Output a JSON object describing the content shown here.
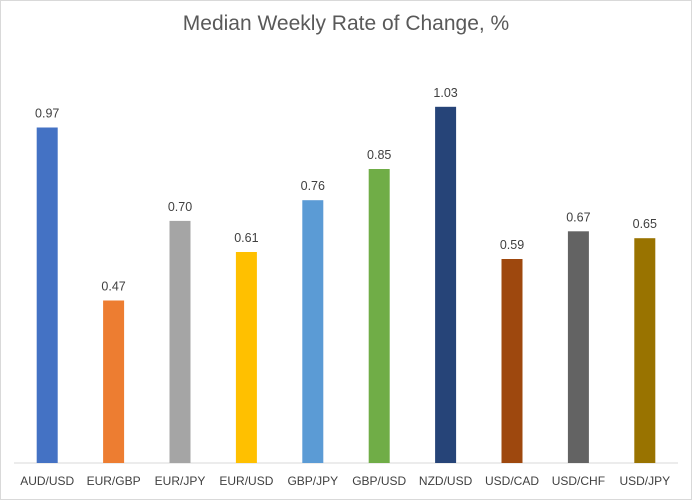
{
  "chart_data": {
    "type": "bar",
    "title": "Median Weekly Rate of Change, %",
    "categories": [
      "AUD/USD",
      "EUR/GBP",
      "EUR/JPY",
      "EUR/USD",
      "GBP/JPY",
      "GBP/USD",
      "NZD/USD",
      "USD/CAD",
      "USD/CHF",
      "USD/JPY"
    ],
    "values": [
      0.97,
      0.47,
      0.7,
      0.61,
      0.76,
      0.85,
      1.03,
      0.59,
      0.67,
      0.65
    ],
    "value_labels": [
      "0.97",
      "0.47",
      "0.70",
      "0.61",
      "0.76",
      "0.85",
      "1.03",
      "0.59",
      "0.67",
      "0.65"
    ],
    "colors": [
      "#4472C4",
      "#ED7D31",
      "#A5A5A5",
      "#FFC000",
      "#5B9BD5",
      "#70AD47",
      "#264478",
      "#9E480E",
      "#636363",
      "#997300"
    ],
    "ylim": [
      0,
      1.2
    ],
    "grid": false,
    "legend": "none",
    "xlabel": "",
    "ylabel": ""
  }
}
